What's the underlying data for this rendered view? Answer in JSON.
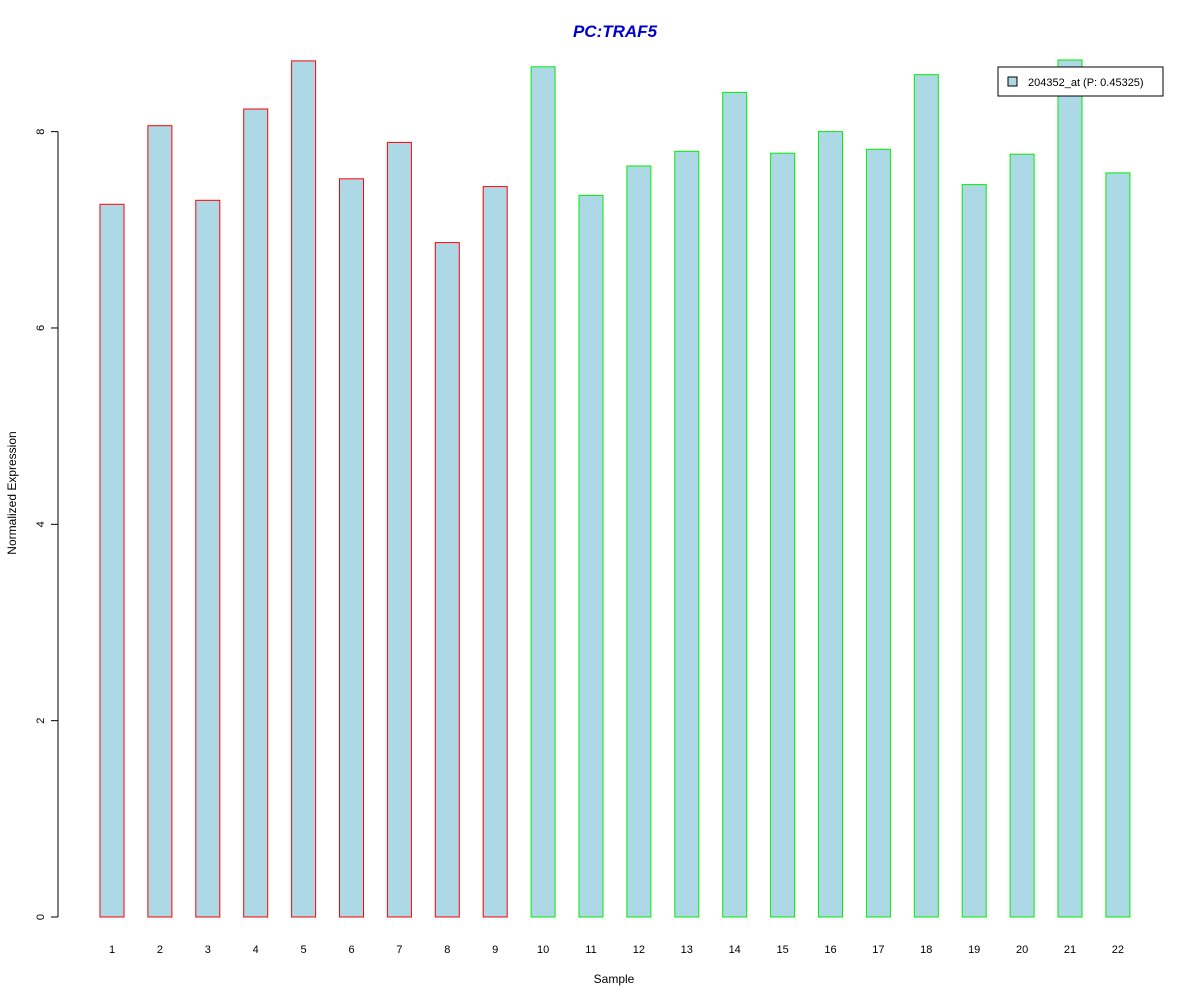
{
  "chart_data": {
    "type": "bar",
    "title": "PC:TRAF5",
    "xlabel": "Sample",
    "ylabel": "Normalized Expression",
    "categories": [
      "1",
      "2",
      "3",
      "4",
      "5",
      "6",
      "7",
      "8",
      "9",
      "10",
      "11",
      "12",
      "13",
      "14",
      "15",
      "16",
      "17",
      "18",
      "19",
      "20",
      "21",
      "22"
    ],
    "values": [
      7.26,
      8.06,
      7.3,
      8.23,
      8.72,
      7.52,
      7.89,
      6.87,
      7.44,
      8.66,
      7.35,
      7.65,
      7.8,
      8.4,
      7.78,
      8.0,
      7.82,
      8.58,
      7.46,
      7.77,
      8.73,
      7.58
    ],
    "groups": [
      "red",
      "red",
      "red",
      "red",
      "red",
      "red",
      "red",
      "red",
      "red",
      "green",
      "green",
      "green",
      "green",
      "green",
      "green",
      "green",
      "green",
      "green",
      "green",
      "green",
      "green",
      "green"
    ],
    "ylim": [
      0,
      8.75
    ],
    "yticks": [
      0,
      2,
      4,
      6,
      8
    ],
    "grid": false,
    "legend": {
      "position": "top-right",
      "entries": [
        {
          "label": "204352_at (P: 0.45325)",
          "color": "#add8e6"
        }
      ]
    },
    "colors": {
      "title": "#0000cd",
      "bar_fill": "#add8e6",
      "border_red": "#ff0000",
      "border_green": "#00ee00"
    }
  }
}
